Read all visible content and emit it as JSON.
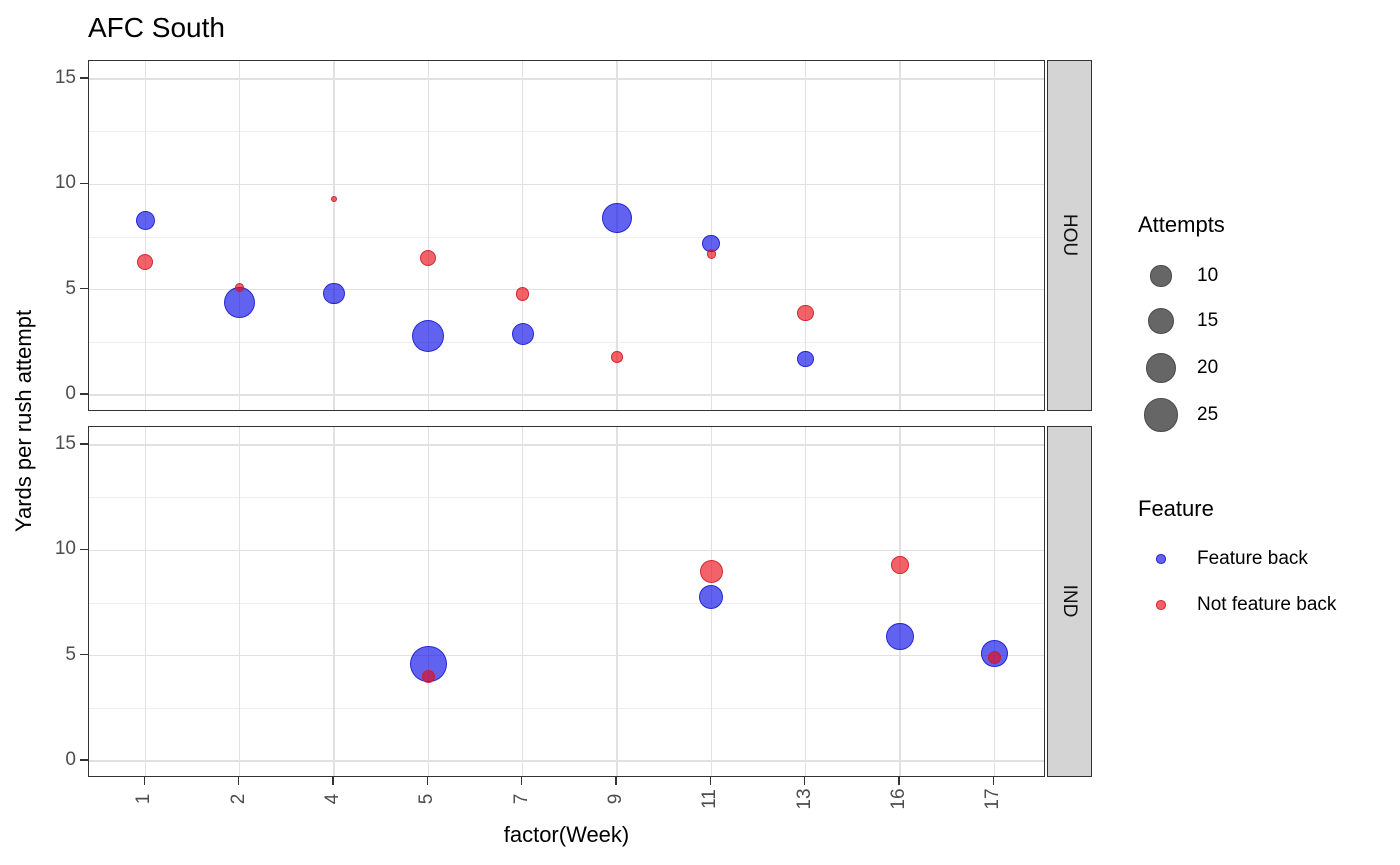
{
  "chart_data": {
    "type": "scatter",
    "title": "AFC South",
    "xlabel": "factor(Week)",
    "ylabel": "Yards per rush attempt",
    "x_categories": [
      "1",
      "2",
      "4",
      "5",
      "7",
      "9",
      "11",
      "13",
      "16",
      "17"
    ],
    "ylim": [
      0,
      15
    ],
    "yticks": [
      0,
      5,
      10,
      15
    ],
    "yticks_minor": [
      2.5,
      7.5,
      12.5
    ],
    "grid": "on",
    "legend_position": "right",
    "facets": [
      {
        "label": "HOU",
        "points": [
          {
            "week": "1",
            "feature": "Feature back",
            "yards_per_attempt": 8.3,
            "attempts": 8
          },
          {
            "week": "1",
            "feature": "Not feature back",
            "yards_per_attempt": 6.3,
            "attempts": 6
          },
          {
            "week": "2",
            "feature": "Feature back",
            "yards_per_attempt": 4.4,
            "attempts": 22
          },
          {
            "week": "2",
            "feature": "Not feature back",
            "yards_per_attempt": 5.1,
            "attempts": 2
          },
          {
            "week": "4",
            "feature": "Feature back",
            "yards_per_attempt": 4.8,
            "attempts": 10
          },
          {
            "week": "4",
            "feature": "Not feature back",
            "yards_per_attempt": 9.3,
            "attempts": 1
          },
          {
            "week": "5",
            "feature": "Feature back",
            "yards_per_attempt": 2.8,
            "attempts": 23
          },
          {
            "week": "5",
            "feature": "Not feature back",
            "yards_per_attempt": 6.5,
            "attempts": 6
          },
          {
            "week": "7",
            "feature": "Feature back",
            "yards_per_attempt": 2.9,
            "attempts": 11
          },
          {
            "week": "7",
            "feature": "Not feature back",
            "yards_per_attempt": 4.8,
            "attempts": 4
          },
          {
            "week": "9",
            "feature": "Feature back",
            "yards_per_attempt": 8.4,
            "attempts": 20
          },
          {
            "week": "9",
            "feature": "Not feature back",
            "yards_per_attempt": 1.8,
            "attempts": 3
          },
          {
            "week": "11",
            "feature": "Feature back",
            "yards_per_attempt": 7.2,
            "attempts": 7
          },
          {
            "week": "11",
            "feature": "Not feature back",
            "yards_per_attempt": 6.7,
            "attempts": 2
          },
          {
            "week": "13",
            "feature": "Feature back",
            "yards_per_attempt": 1.7,
            "attempts": 6
          },
          {
            "week": "13",
            "feature": "Not feature back",
            "yards_per_attempt": 3.9,
            "attempts": 6
          }
        ]
      },
      {
        "label": "IND",
        "points": [
          {
            "week": "5",
            "feature": "Feature back",
            "yards_per_attempt": 4.6,
            "attempts": 30
          },
          {
            "week": "5",
            "feature": "Not feature back",
            "yards_per_attempt": 4.0,
            "attempts": 4
          },
          {
            "week": "11",
            "feature": "Feature back",
            "yards_per_attempt": 7.8,
            "attempts": 13
          },
          {
            "week": "11",
            "feature": "Not feature back",
            "yards_per_attempt": 9.0,
            "attempts": 12
          },
          {
            "week": "16",
            "feature": "Feature back",
            "yards_per_attempt": 5.9,
            "attempts": 17
          },
          {
            "week": "16",
            "feature": "Not feature back",
            "yards_per_attempt": 9.3,
            "attempts": 7
          },
          {
            "week": "17",
            "feature": "Feature back",
            "yards_per_attempt": 5.1,
            "attempts": 16
          },
          {
            "week": "17",
            "feature": "Not feature back",
            "yards_per_attempt": 4.9,
            "attempts": 4
          }
        ]
      }
    ],
    "size_legend": {
      "title": "Attempts",
      "values": [
        "10",
        "15",
        "20",
        "25"
      ]
    },
    "color_legend": {
      "title": "Feature",
      "items": [
        {
          "label": "Feature back",
          "color": "#3434e0"
        },
        {
          "label": "Not feature back",
          "color": "#ef3b47"
        }
      ]
    },
    "colors": {
      "feature_back_fill": "rgba(10,10,232,0.64)",
      "feature_back_stroke": "rgba(25,27,205,0.85)",
      "not_feature_back_fill": "rgba(237,10,20,0.64)",
      "not_feature_back_stroke": "rgba(200,30,40,0.85)",
      "size_key_fill": "rgba(0,0,0,0.60)",
      "size_key_stroke": "#4a4a4a",
      "grid_major": "#e1e1e1",
      "grid_minor": "#efefef",
      "axis_text": "#4d4d4d",
      "strip_bg": "#d4d4d4",
      "panel_border": "#333333"
    }
  }
}
